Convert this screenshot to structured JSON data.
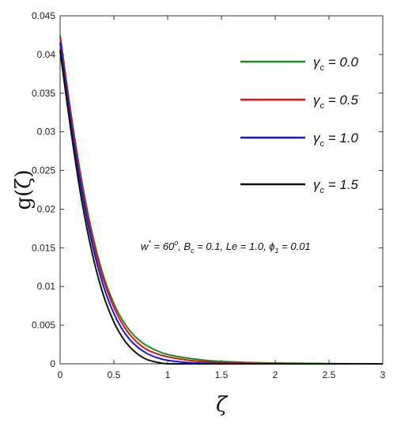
{
  "chart_data": {
    "type": "line",
    "xlabel": "ζ",
    "ylabel": "g(ζ)",
    "xlim": [
      0,
      3
    ],
    "ylim": [
      0,
      0.045
    ],
    "xticks": [
      "0",
      "0.5",
      "1",
      "1.5",
      "2",
      "2.5",
      "3"
    ],
    "yticks": [
      "0",
      "0.005",
      "0.01",
      "0.015",
      "0.02",
      "0.025",
      "0.03",
      "0.035",
      "0.04",
      "0.045"
    ],
    "grid": false,
    "legend_position": "top-right",
    "series": [
      {
        "name": "γc = 0.0",
        "legend_main": "γ",
        "legend_sub": "c",
        "legend_value": " = 0.0",
        "color": "#1a8a1a",
        "x": [
          0,
          0.1,
          0.2,
          0.3,
          0.4,
          0.5,
          0.6,
          0.7,
          0.8,
          0.9,
          1.0,
          1.2,
          1.4,
          1.6,
          1.8,
          2.0,
          2.5,
          3.0
        ],
        "y": [
          0.0425,
          0.0325,
          0.0238,
          0.0168,
          0.0115,
          0.0078,
          0.0052,
          0.0035,
          0.0024,
          0.0017,
          0.0012,
          0.0007,
          0.0004,
          0.00025,
          0.00015,
          0.0001,
          3e-05,
          0.0
        ]
      },
      {
        "name": "γc = 0.5",
        "legend_main": "γ",
        "legend_sub": "c",
        "legend_value": " = 0.5",
        "color": "#e01010",
        "x": [
          0,
          0.1,
          0.2,
          0.3,
          0.4,
          0.5,
          0.6,
          0.7,
          0.8,
          0.9,
          1.0,
          1.2,
          1.4,
          1.6,
          1.8,
          2.0,
          2.5,
          3.0
        ],
        "y": [
          0.0422,
          0.032,
          0.0232,
          0.0162,
          0.011,
          0.0073,
          0.0047,
          0.003,
          0.0019,
          0.0013,
          0.0009,
          0.00045,
          0.00022,
          0.00011,
          5e-05,
          2e-05,
          0.0,
          0.0
        ]
      },
      {
        "name": "γc = 1.0",
        "legend_main": "γ",
        "legend_sub": "c",
        "legend_value": " = 1.0",
        "color": "#1515e0",
        "x": [
          0,
          0.1,
          0.2,
          0.3,
          0.4,
          0.5,
          0.6,
          0.7,
          0.8,
          0.9,
          1.0,
          1.2,
          1.4,
          1.6,
          1.8,
          2.0,
          2.5,
          3.0
        ],
        "y": [
          0.0415,
          0.0312,
          0.0224,
          0.0154,
          0.0102,
          0.0065,
          0.004,
          0.0024,
          0.0014,
          0.0008,
          0.00045,
          0.00015,
          5e-05,
          2e-05,
          0.0,
          0.0,
          0.0,
          0.0
        ]
      },
      {
        "name": "γc = 1.5",
        "legend_main": "γ",
        "legend_sub": "c",
        "legend_value": " = 1.5",
        "color": "#111111",
        "x": [
          0,
          0.1,
          0.2,
          0.3,
          0.4,
          0.5,
          0.6,
          0.7,
          0.8,
          0.9,
          1.0,
          1.2,
          1.4,
          1.6,
          1.8,
          2.0,
          2.5,
          3.0
        ],
        "y": [
          0.0405,
          0.0302,
          0.0212,
          0.0142,
          0.009,
          0.0054,
          0.003,
          0.0015,
          0.0006,
          0.0002,
          0.0,
          0.0,
          0.0,
          0.0,
          0.0,
          0.0,
          0.0,
          0.0
        ]
      }
    ],
    "annotation": {
      "w": "w",
      "w_sup": "*",
      "w_rest": " = 60",
      "w_deg": "o",
      "b": ", B",
      "b_sub": "c",
      "rest": " = 0.1, Le = 1.0, ",
      "phi": "ϕ",
      "phi_sub": "1",
      "phi_rest": " = 0.01"
    }
  }
}
